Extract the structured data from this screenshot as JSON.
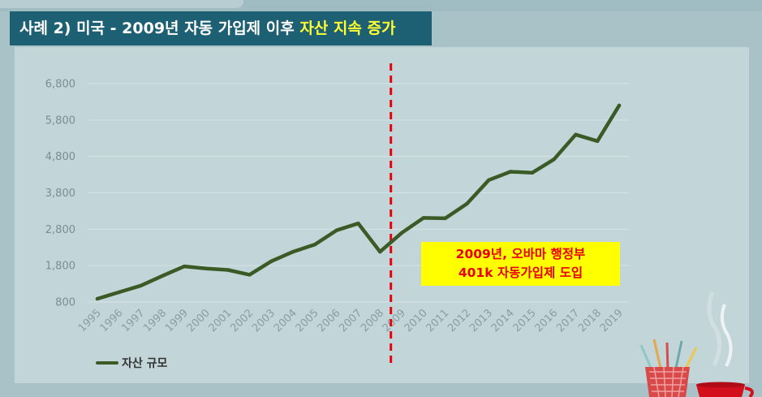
{
  "title": {
    "prefix": "사례 2) 미국 - 2009년 자동 가입제 이후 ",
    "highlight": "자산 지속 증가"
  },
  "annotation": {
    "line1": "2009년, 오바마 행정부",
    "line2": "401k 자동가입제 도입"
  },
  "legend": {
    "label": "자산 규모"
  },
  "colors": {
    "line": "#3a5a26",
    "marker_line": "#e8000b",
    "annotation_bg": "#ffff00",
    "title_bg": "#1d5f73",
    "title_highlight": "#ffff33"
  },
  "decoration": {
    "icon": "pencil-cup-and-teacup-icon"
  },
  "chart_data": {
    "type": "line",
    "title": "",
    "xlabel": "",
    "ylabel": "",
    "ylim": [
      800,
      6800
    ],
    "yticks": [
      800,
      1800,
      2800,
      3800,
      4800,
      5800,
      6800
    ],
    "ytick_labels": [
      "800",
      "1,800",
      "2,800",
      "3,800",
      "4,800",
      "5,800",
      "6,800"
    ],
    "grid": true,
    "legend_placement": "bottom-left",
    "vertical_marker_between": [
      "2008",
      "2009"
    ],
    "categories": [
      "1995",
      "1996",
      "1997",
      "1998",
      "1999",
      "2000",
      "2001",
      "2002",
      "2003",
      "2004",
      "2005",
      "2006",
      "2007",
      "2008",
      "2009",
      "2010",
      "2011",
      "2012",
      "2013",
      "2014",
      "2015",
      "2016",
      "2017",
      "2018",
      "2019"
    ],
    "series": [
      {
        "name": "자산 규모",
        "values": [
          890,
          1070,
          1250,
          1520,
          1780,
          1720,
          1680,
          1550,
          1920,
          2180,
          2380,
          2770,
          2960,
          2180,
          2700,
          3110,
          3100,
          3500,
          4150,
          4380,
          4350,
          4720,
          5400,
          5220,
          6200
        ]
      }
    ]
  }
}
